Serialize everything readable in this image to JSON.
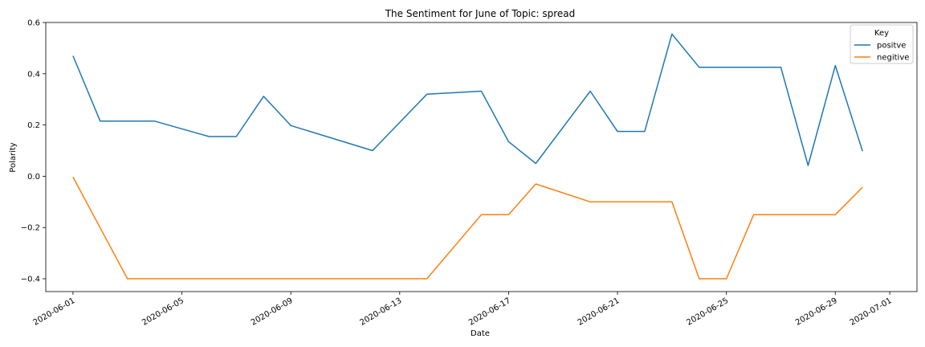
{
  "chart_data": {
    "type": "line",
    "title": "The Sentiment for June of Topic: spread",
    "xlabel": "Date",
    "ylabel": "Polarity",
    "xlim": [
      "2020-05-31",
      "2020-07-02"
    ],
    "ylim": [
      -0.45,
      0.6
    ],
    "x_ticks": [
      "2020-06-01",
      "2020-06-05",
      "2020-06-09",
      "2020-06-13",
      "2020-06-17",
      "2020-06-21",
      "2020-06-25",
      "2020-06-29",
      "2020-07-01"
    ],
    "y_ticks": [
      0.6,
      0.4,
      0.2,
      0.0,
      -0.2,
      -0.4
    ],
    "y_tick_labels": [
      "0.6",
      "0.4",
      "0.2",
      "0.0",
      "−0.2",
      "−0.4"
    ],
    "legend": {
      "title": "Key",
      "position": "top-right"
    },
    "series": [
      {
        "name": "positve",
        "color": "#1f77b4",
        "points": [
          [
            "2020-06-01",
            0.47
          ],
          [
            "2020-06-02",
            0.215
          ],
          [
            "2020-06-04",
            0.215
          ],
          [
            "2020-06-06",
            0.155
          ],
          [
            "2020-06-07",
            0.155
          ],
          [
            "2020-06-08",
            0.312
          ],
          [
            "2020-06-09",
            0.198
          ],
          [
            "2020-06-12",
            0.1
          ],
          [
            "2020-06-14",
            0.32
          ],
          [
            "2020-06-16",
            0.332
          ],
          [
            "2020-06-17",
            0.135
          ],
          [
            "2020-06-18",
            0.05
          ],
          [
            "2020-06-20",
            0.332
          ],
          [
            "2020-06-21",
            0.175
          ],
          [
            "2020-06-22",
            0.175
          ],
          [
            "2020-06-23",
            0.555
          ],
          [
            "2020-06-24",
            0.425
          ],
          [
            "2020-06-27",
            0.425
          ],
          [
            "2020-06-28",
            0.042
          ],
          [
            "2020-06-29",
            0.432
          ],
          [
            "2020-06-30",
            0.098
          ]
        ]
      },
      {
        "name": "negitive",
        "color": "#ff7f0e",
        "points": [
          [
            "2020-06-01",
            -0.003
          ],
          [
            "2020-06-03",
            -0.4
          ],
          [
            "2020-06-14",
            -0.4
          ],
          [
            "2020-06-16",
            -0.15
          ],
          [
            "2020-06-17",
            -0.15
          ],
          [
            "2020-06-18",
            -0.03
          ],
          [
            "2020-06-20",
            -0.1
          ],
          [
            "2020-06-23",
            -0.1
          ],
          [
            "2020-06-24",
            -0.4
          ],
          [
            "2020-06-25",
            -0.4
          ],
          [
            "2020-06-26",
            -0.15
          ],
          [
            "2020-06-29",
            -0.15
          ],
          [
            "2020-06-30",
            -0.043
          ]
        ]
      }
    ]
  }
}
